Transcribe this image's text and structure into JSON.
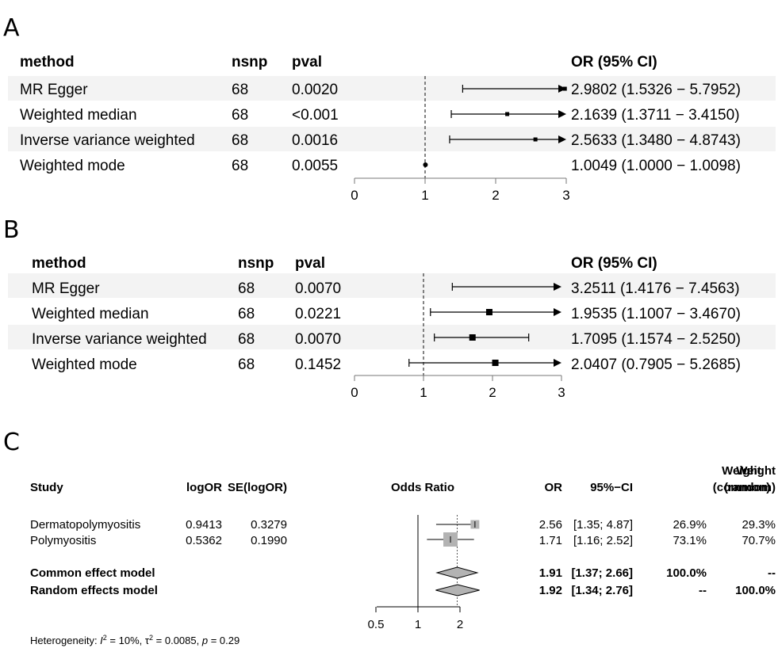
{
  "chart_data": [
    {
      "type": "forest",
      "panel": "A",
      "columns": {
        "method": "method",
        "nsnp": "nsnp",
        "pval": "pval",
        "or_ci": "OR (95% CI)"
      },
      "rows": [
        {
          "method": "MR Egger",
          "nsnp": "68",
          "pval": "0.0020",
          "or": 2.9802,
          "lower": 1.5326,
          "upper": 5.7952,
          "label": "2.9802 (1.5326 − 5.7952)"
        },
        {
          "method": "Weighted median",
          "nsnp": "68",
          "pval": "<0.001",
          "or": 2.1639,
          "lower": 1.3711,
          "upper": 3.415,
          "label": "2.1639 (1.3711 − 3.4150)"
        },
        {
          "method": "Inverse variance weighted",
          "nsnp": "68",
          "pval": "0.0016",
          "or": 2.5633,
          "lower": 1.348,
          "upper": 4.8743,
          "label": "2.5633 (1.3480 − 4.8743)"
        },
        {
          "method": "Weighted mode",
          "nsnp": "68",
          "pval": "0.0055",
          "or": 1.0049,
          "lower": 1.0,
          "upper": 1.0098,
          "label": "1.0049 (1.0000 − 1.0098)"
        }
      ],
      "xlim": [
        0,
        3
      ],
      "xticks": [
        "0",
        "1",
        "2",
        "3"
      ],
      "reference_line": 1,
      "grid": false
    },
    {
      "type": "forest",
      "panel": "B",
      "columns": {
        "method": "method",
        "nsnp": "nsnp",
        "pval": "pval",
        "or_ci": "OR (95% CI)"
      },
      "rows": [
        {
          "method": "MR Egger",
          "nsnp": "68",
          "pval": "0.0070",
          "or": 3.2511,
          "lower": 1.4176,
          "upper": 7.4563,
          "label": "3.2511 (1.4176 − 7.4563)"
        },
        {
          "method": "Weighted median",
          "nsnp": "68",
          "pval": "0.0221",
          "or": 1.9535,
          "lower": 1.1007,
          "upper": 3.467,
          "label": "1.9535 (1.1007 − 3.4670)"
        },
        {
          "method": "Inverse variance weighted",
          "nsnp": "68",
          "pval": "0.0070",
          "or": 1.7095,
          "lower": 1.1574,
          "upper": 2.525,
          "label": "1.7095 (1.1574 − 2.5250)"
        },
        {
          "method": "Weighted mode",
          "nsnp": "68",
          "pval": "0.1452",
          "or": 2.0407,
          "lower": 0.7905,
          "upper": 5.2685,
          "label": "2.0407 (0.7905 − 5.2685)"
        }
      ],
      "xlim": [
        0,
        3
      ],
      "xticks": [
        "0",
        "1",
        "2",
        "3"
      ],
      "reference_line": 1,
      "grid": false
    },
    {
      "type": "meta-forest",
      "panel": "C",
      "headers": {
        "study": "Study",
        "logor": "logOR",
        "se": "SE(logOR)",
        "plot": "Odds Ratio",
        "or": "OR",
        "ci": "95%−CI",
        "wc1": "Weight",
        "wc2": "(common)",
        "wr1": "Weight",
        "wr2": "(random)"
      },
      "studies": [
        {
          "name": "Dermatopolymyositis",
          "logor": "0.9413",
          "se": "0.3279",
          "or": 2.56,
          "lower": 1.35,
          "upper": 4.87,
          "or_text": "2.56",
          "ci_text": "[1.35; 4.87]",
          "w_common": "26.9%",
          "w_random": "29.3%",
          "weight": 26.9
        },
        {
          "name": "Polymyositis",
          "logor": "0.5362",
          "se": "0.1990",
          "or": 1.71,
          "lower": 1.16,
          "upper": 2.52,
          "or_text": "1.71",
          "ci_text": "[1.16; 2.52]",
          "w_common": "73.1%",
          "w_random": "70.7%",
          "weight": 73.1
        }
      ],
      "models": [
        {
          "name": "Common effect model",
          "or": 1.91,
          "lower": 1.37,
          "upper": 2.66,
          "or_text": "1.91",
          "ci_text": "[1.37; 2.66]",
          "w_common": "100.0%",
          "w_random": "--"
        },
        {
          "name": "Random effects model",
          "or": 1.92,
          "lower": 1.34,
          "upper": 2.76,
          "or_text": "1.92",
          "ci_text": "[1.34; 2.76]",
          "w_common": "--",
          "w_random": "100.0%"
        }
      ],
      "x_scale": "log",
      "xticks": [
        0.5,
        1,
        2
      ],
      "xtick_labels": [
        "0.5",
        "1",
        "2"
      ],
      "xlim": [
        0.4,
        2.6
      ],
      "reference_line": 1,
      "heterogeneity": {
        "prefix": "Heterogeneity: ",
        "i2_label": "I",
        "i2_value": " = 10%, ",
        "tau2_label": "τ",
        "tau2_value": " = 0.0085, ",
        "p_label": "p",
        "p_value": " = 0.29"
      }
    }
  ],
  "panel_labels": {
    "a": "A",
    "b": "B",
    "c": "C"
  },
  "colors": {
    "band": "#f3f3f3",
    "square": "#b3b3b3",
    "diamond": "#b3b3b3",
    "line": "#000000",
    "axis": "#777777"
  }
}
